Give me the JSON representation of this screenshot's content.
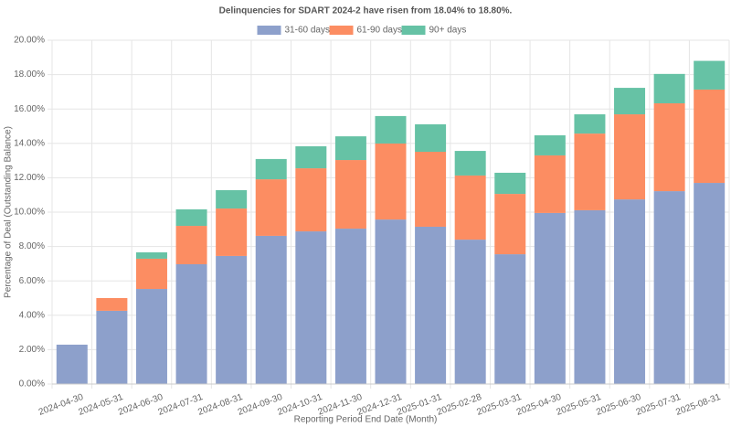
{
  "chart_data": {
    "type": "stacked_bar",
    "title": "Delinquencies for SDART 2024-2 have risen from 18.04% to 18.80%.",
    "x_label": "Reporting Period End Date (Month)",
    "y_label": "Percentage of Deal (Outstanding Balance)",
    "categories": [
      "2024-04-30",
      "2024-05-31",
      "2024-06-30",
      "2024-07-31",
      "2024-08-31",
      "2024-09-30",
      "2024-10-31",
      "2024-11-30",
      "2024-12-31",
      "2025-01-31",
      "2025-02-28",
      "2025-03-31",
      "2025-04-30",
      "2025-05-31",
      "2025-06-30",
      "2025-07-31",
      "2025-08-31"
    ],
    "series": [
      {
        "name": "31-60 days",
        "color": "#8da0cb",
        "values": [
          2.29,
          4.26,
          5.53,
          6.97,
          7.45,
          8.62,
          8.88,
          9.04,
          9.57,
          9.15,
          8.4,
          7.55,
          9.95,
          10.11,
          10.74,
          11.22,
          11.7
        ]
      },
      {
        "name": "61-90 days",
        "color": "#fc8d62",
        "values": [
          0,
          0.74,
          1.76,
          2.23,
          2.76,
          3.29,
          3.67,
          3.99,
          4.42,
          4.36,
          3.73,
          3.51,
          3.35,
          4.46,
          4.95,
          5.11,
          5.43
        ]
      },
      {
        "name": "90+ days",
        "color": "#66c2a5",
        "values": [
          0,
          0,
          0.37,
          0.96,
          1.07,
          1.18,
          1.28,
          1.38,
          1.6,
          1.6,
          1.43,
          1.23,
          1.17,
          1.12,
          1.54,
          1.71,
          1.67
        ]
      }
    ],
    "ylim": [
      0,
      20
    ],
    "yticks": [
      {
        "value": 0,
        "label": "0.00%"
      },
      {
        "value": 2,
        "label": "2.00%"
      },
      {
        "value": 4,
        "label": "4.00%"
      },
      {
        "value": 6,
        "label": "6.00%"
      },
      {
        "value": 8,
        "label": "8.00%"
      },
      {
        "value": 10,
        "label": "10.00%"
      },
      {
        "value": 12,
        "label": "12.00%"
      },
      {
        "value": 14,
        "label": "14.00%"
      },
      {
        "value": 16,
        "label": "16.00%"
      },
      {
        "value": 18,
        "label": "18.00%"
      },
      {
        "value": 20,
        "label": "20.00%"
      }
    ],
    "grid": true,
    "legend": "top"
  }
}
